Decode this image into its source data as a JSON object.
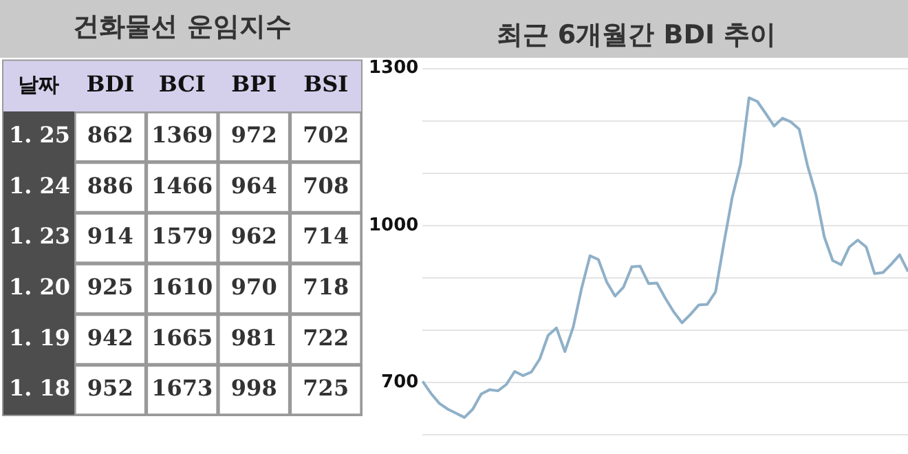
{
  "chart_data": [
    {
      "type": "heatmap",
      "title": "건화물선 운임지수",
      "ylabel": "날짜",
      "data_labels": true,
      "categories": [
        "BDI",
        "BCI",
        "BPI",
        "BSI"
      ],
      "y_categories": [
        "1. 25",
        "1. 24",
        "1. 23",
        "1. 20",
        "1. 19",
        "1. 18"
      ],
      "cells": [
        [
          862,
          1369,
          972,
          702
        ],
        [
          886,
          1466,
          964,
          708
        ],
        [
          914,
          1579,
          962,
          714
        ],
        [
          925,
          1610,
          970,
          718
        ],
        [
          942,
          1665,
          981,
          722
        ],
        [
          952,
          1673,
          998,
          725
        ]
      ]
    },
    {
      "type": "line",
      "title": "최근 6개월간 BDI 추이",
      "tick_labels": "y",
      "grid": "y",
      "marker": "none",
      "line_style": "solid",
      "categories": [
        null,
        null,
        null,
        null,
        null,
        null,
        null,
        null,
        null,
        null,
        null,
        null,
        null,
        null,
        null,
        null,
        null,
        null,
        null,
        null,
        null,
        null,
        null,
        null,
        null,
        null,
        null,
        null,
        null,
        null,
        null,
        null,
        null,
        null,
        null,
        null,
        null,
        null,
        null,
        null,
        null,
        null,
        null,
        null,
        null,
        null,
        null,
        null,
        null,
        null,
        null,
        null,
        null,
        null,
        null,
        null,
        null,
        null,
        null
      ],
      "ylim": [
        600,
        1300
      ],
      "yticks": [
        {
          "value": 600,
          "label": null
        },
        700,
        {
          "value": 800,
          "label": null
        },
        {
          "value": 900,
          "label": null
        },
        1000,
        {
          "value": 1100,
          "label": null
        },
        {
          "value": 1200,
          "label": null
        },
        1300
      ],
      "series": [
        {
          "color": "#8fb0c8",
          "values": [
            702,
            679,
            660,
            649,
            641,
            633,
            649,
            678,
            686,
            684,
            696,
            721,
            713,
            720,
            745,
            790,
            804,
            759,
            806,
            880,
            942,
            935,
            892,
            865,
            882,
            921,
            922,
            889,
            890,
            861,
            835,
            814,
            830,
            848,
            849,
            873,
            966,
            1054,
            1118,
            1244,
            1237,
            1214,
            1190,
            1205,
            1198,
            1184,
            1114,
            1059,
            978,
            933,
            925,
            959,
            972,
            959,
            908,
            910,
            926,
            944,
            912
          ]
        }
      ]
    }
  ]
}
